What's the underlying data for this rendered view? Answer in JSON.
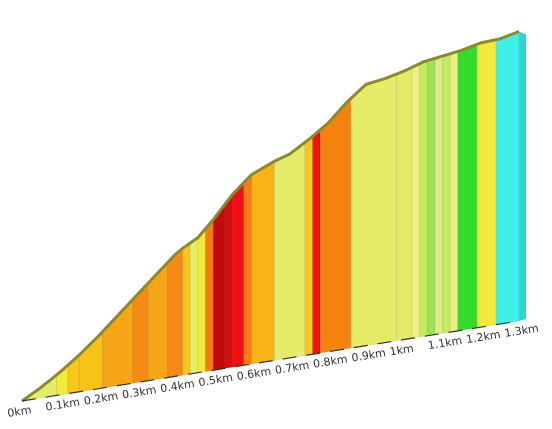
{
  "chart_data": {
    "type": "area",
    "xunit": "km",
    "xlim": [
      0,
      1.3
    ],
    "ticks": [
      {
        "x": 0.0,
        "label": "0km"
      },
      {
        "x": 0.1,
        "label": "0.1km"
      },
      {
        "x": 0.2,
        "label": "0.2km"
      },
      {
        "x": 0.3,
        "label": "0.3km"
      },
      {
        "x": 0.4,
        "label": "0.4km"
      },
      {
        "x": 0.5,
        "label": "0.5km"
      },
      {
        "x": 0.6,
        "label": "0.6km"
      },
      {
        "x": 0.7,
        "label": "0.7km"
      },
      {
        "x": 0.8,
        "label": "0.8km"
      },
      {
        "x": 0.9,
        "label": "0.9km"
      },
      {
        "x": 1.0,
        "label": "1km"
      },
      {
        "x": 1.1,
        "label": "1.1km"
      },
      {
        "x": 1.2,
        "label": "1.2km"
      },
      {
        "x": 1.3,
        "label": "1.3km"
      }
    ],
    "elevation_profile": [
      {
        "x": 0.0,
        "y": 0.0
      },
      {
        "x": 0.05,
        "y": 3.0
      },
      {
        "x": 0.1,
        "y": 6.5
      },
      {
        "x": 0.15,
        "y": 10.5
      },
      {
        "x": 0.2,
        "y": 15.0
      },
      {
        "x": 0.25,
        "y": 20.0
      },
      {
        "x": 0.3,
        "y": 25.0
      },
      {
        "x": 0.35,
        "y": 30.0
      },
      {
        "x": 0.4,
        "y": 35.0
      },
      {
        "x": 0.42,
        "y": 36.5
      },
      {
        "x": 0.46,
        "y": 39.0
      },
      {
        "x": 0.5,
        "y": 43.5
      },
      {
        "x": 0.55,
        "y": 50.0
      },
      {
        "x": 0.6,
        "y": 55.0
      },
      {
        "x": 0.66,
        "y": 58.0
      },
      {
        "x": 0.7,
        "y": 59.5
      },
      {
        "x": 0.75,
        "y": 63.0
      },
      {
        "x": 0.8,
        "y": 67.0
      },
      {
        "x": 0.85,
        "y": 72.5
      },
      {
        "x": 0.9,
        "y": 77.0
      },
      {
        "x": 0.95,
        "y": 78.0
      },
      {
        "x": 1.0,
        "y": 79.5
      },
      {
        "x": 1.05,
        "y": 81.5
      },
      {
        "x": 1.1,
        "y": 82.5
      },
      {
        "x": 1.15,
        "y": 83.5
      },
      {
        "x": 1.2,
        "y": 85.0
      },
      {
        "x": 1.25,
        "y": 85.5
      },
      {
        "x": 1.3,
        "y": 87.0
      }
    ],
    "gradient_bands": [
      {
        "from": 0.0,
        "to": 0.09,
        "color": "#e6ec6a"
      },
      {
        "from": 0.09,
        "to": 0.12,
        "color": "#f1ea3a"
      },
      {
        "from": 0.12,
        "to": 0.15,
        "color": "#f7c51b"
      },
      {
        "from": 0.15,
        "to": 0.21,
        "color": "#f8c316"
      },
      {
        "from": 0.21,
        "to": 0.29,
        "color": "#f6a516"
      },
      {
        "from": 0.29,
        "to": 0.33,
        "color": "#f68a16"
      },
      {
        "from": 0.33,
        "to": 0.38,
        "color": "#f6a516"
      },
      {
        "from": 0.38,
        "to": 0.42,
        "color": "#f68a16"
      },
      {
        "from": 0.42,
        "to": 0.44,
        "color": "#f7c51b"
      },
      {
        "from": 0.44,
        "to": 0.46,
        "color": "#e6ec6a"
      },
      {
        "from": 0.46,
        "to": 0.48,
        "color": "#f1ea3a"
      },
      {
        "from": 0.48,
        "to": 0.5,
        "color": "#f67d16"
      },
      {
        "from": 0.5,
        "to": 0.53,
        "color": "#c20a0a"
      },
      {
        "from": 0.53,
        "to": 0.55,
        "color": "#d40e0e"
      },
      {
        "from": 0.55,
        "to": 0.58,
        "color": "#f20f0f"
      },
      {
        "from": 0.58,
        "to": 0.6,
        "color": "#f67d16"
      },
      {
        "from": 0.6,
        "to": 0.66,
        "color": "#f8b316"
      },
      {
        "from": 0.66,
        "to": 0.74,
        "color": "#e6ec6a"
      },
      {
        "from": 0.74,
        "to": 0.76,
        "color": "#f7c51b"
      },
      {
        "from": 0.76,
        "to": 0.78,
        "color": "#f20f0f"
      },
      {
        "from": 0.78,
        "to": 0.86,
        "color": "#f6830f"
      },
      {
        "from": 0.86,
        "to": 0.98,
        "color": "#e6ec6a"
      },
      {
        "from": 0.98,
        "to": 1.02,
        "color": "#e6ec6a"
      },
      {
        "from": 1.02,
        "to": 1.04,
        "color": "#eef086"
      },
      {
        "from": 1.04,
        "to": 1.06,
        "color": "#c4eb5e"
      },
      {
        "from": 1.06,
        "to": 1.08,
        "color": "#9ae556"
      },
      {
        "from": 1.08,
        "to": 1.1,
        "color": "#dcea8a"
      },
      {
        "from": 1.1,
        "to": 1.12,
        "color": "#c4eb5e"
      },
      {
        "from": 1.12,
        "to": 1.14,
        "color": "#eef086"
      },
      {
        "from": 1.14,
        "to": 1.19,
        "color": "#33dc2b"
      },
      {
        "from": 1.19,
        "to": 1.24,
        "color": "#f1ea3a"
      },
      {
        "from": 1.24,
        "to": 1.3,
        "color": "#3ff0e8"
      }
    ],
    "outline_color": "#8c8a2a",
    "axis_color": "#333333"
  }
}
